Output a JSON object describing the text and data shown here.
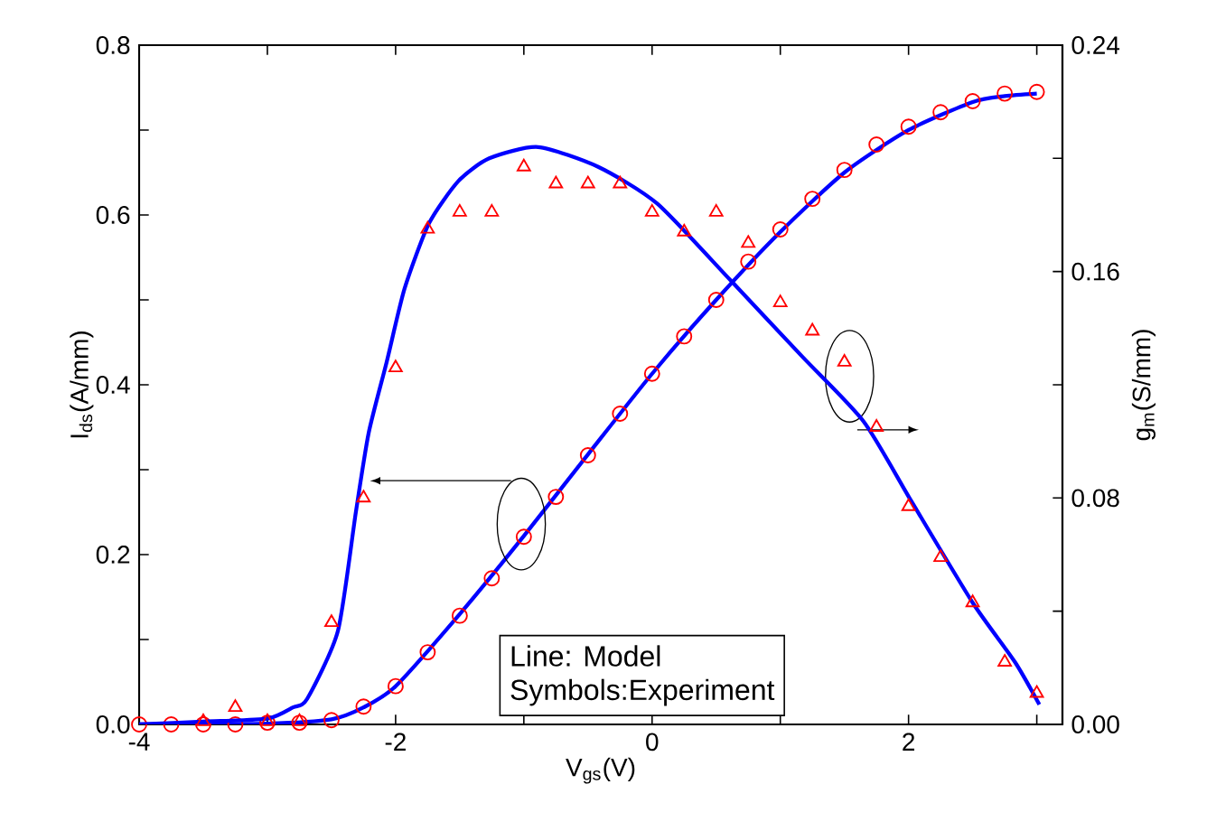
{
  "chart_data": {
    "type": "line",
    "xlabel": "V$_{gs}$(V)",
    "ylabel": "I$_{ds}$(A/mm)",
    "y2label": "g$_{m}$(S/mm)",
    "xlim": [
      -4,
      3.2
    ],
    "ylim": [
      0,
      0.8
    ],
    "y2lim": [
      0,
      0.24
    ],
    "xticks": [
      -4,
      {
        "value": -3,
        "label": null
      },
      -2,
      {
        "value": -1,
        "label": null
      },
      0,
      {
        "value": 1,
        "label": null
      },
      2,
      {
        "value": 3,
        "label": null
      }
    ],
    "yticks": [
      {
        "value": 0,
        "label": "0.0"
      },
      {
        "value": 0.1,
        "label": null
      },
      0.2,
      {
        "value": 0.3,
        "label": null
      },
      0.4,
      {
        "value": 0.5,
        "label": null
      },
      0.6,
      {
        "value": 0.7,
        "label": null
      },
      0.8
    ],
    "y2ticks": [
      {
        "value": 0,
        "label": "0.00"
      },
      {
        "value": 0.04,
        "label": null
      },
      0.08,
      {
        "value": 0.12,
        "label": null
      },
      0.16,
      {
        "value": 0.2,
        "label": null
      },
      0.24
    ],
    "annotations": [
      "Line: Model",
      "Symbols:Experiment"
    ],
    "series": [
      {
        "color": "#0000ff",
        "marker": "none",
        "line_style": "solid",
        "x": [
          -4,
          -3,
          -2.5,
          -2.25,
          -2,
          -1.5,
          -1,
          -0.5,
          0,
          0.5,
          1,
          1.5,
          2,
          2.5,
          2.75,
          3
        ],
        "values": [
          0,
          0.001,
          0.006,
          0.02,
          0.045,
          0.13,
          0.222,
          0.318,
          0.413,
          0.5,
          0.58,
          0.65,
          0.7,
          0.733,
          0.74,
          0.743
        ]
      },
      {
        "type": "scatter",
        "color": "#ff0000",
        "marker": "circle",
        "x": [
          -4,
          -3.75,
          -3.5,
          -3.25,
          -3,
          -2.75,
          -2.5,
          -2.25,
          -2,
          -1.75,
          -1.5,
          -1.25,
          -1,
          -0.75,
          -0.5,
          -0.25,
          0,
          0.25,
          0.5,
          0.75,
          1,
          1.25,
          1.5,
          1.75,
          2,
          2.25,
          2.5,
          2.75,
          3
        ],
        "values": [
          0,
          0,
          0,
          0,
          0.002,
          0.002,
          0.005,
          0.021,
          0.045,
          0.085,
          0.128,
          0.172,
          0.221,
          0.268,
          0.317,
          0.366,
          0.413,
          0.457,
          0.5,
          0.545,
          0.583,
          0.619,
          0.653,
          0.683,
          0.704,
          0.721,
          0.734,
          0.743,
          0.745
        ]
      },
      {
        "axis": "y2",
        "color": "#0000ff",
        "marker": "none",
        "line_style": "solid",
        "x": [
          -4,
          -3.5,
          -3,
          -2.8,
          -2.69,
          -2.45,
          -2.31,
          -2.21,
          -2.07,
          -1.93,
          -1.74,
          -1.51,
          -1.27,
          -0.89,
          -0.42,
          0.04,
          0.61,
          1.17,
          1.65,
          2.02,
          2.5,
          2.83,
          3.02
        ],
        "values": [
          0,
          0.001,
          0.002,
          0.006,
          0.009,
          0.033,
          0.075,
          0.103,
          0.128,
          0.154,
          0.177,
          0.192,
          0.2,
          0.204,
          0.197,
          0.184,
          0.157,
          0.13,
          0.107,
          0.079,
          0.043,
          0.022,
          0.007
        ]
      },
      {
        "type": "scatter",
        "axis": "y2",
        "color": "#ff0000",
        "marker": "triangle",
        "x": [
          -3.5,
          -3.25,
          -3,
          -2.75,
          -2.5,
          -2.25,
          -2,
          -1.75,
          -1.5,
          -1.25,
          -1,
          -0.75,
          -0.5,
          -0.25,
          0,
          0.25,
          0.5,
          0.75,
          1,
          1.25,
          1.5,
          1.75,
          2,
          2.25,
          2.5,
          2.75,
          3
        ],
        "values": [
          0.001,
          0.006,
          0.001,
          0.001,
          0.036,
          0.08,
          0.126,
          0.175,
          0.181,
          0.181,
          0.197,
          0.191,
          0.191,
          0.191,
          0.181,
          0.174,
          0.181,
          0.17,
          0.149,
          0.139,
          0.128,
          0.105,
          0.077,
          0.059,
          0.043,
          0.022,
          0.011
        ]
      }
    ]
  }
}
